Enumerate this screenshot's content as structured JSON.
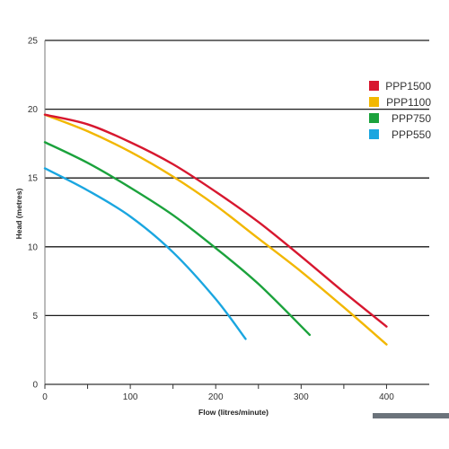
{
  "chart_data": {
    "type": "line",
    "xlabel": "Flow (litres/minute)",
    "ylabel": "Head (metres)",
    "xlim": [
      0,
      450
    ],
    "ylim": [
      0,
      25
    ],
    "x_ticks": [
      0,
      100,
      200,
      300,
      400
    ],
    "x_minor_ticks": [
      50,
      150,
      250,
      350
    ],
    "y_ticks": [
      0,
      5,
      10,
      15,
      20,
      25
    ],
    "grid": "horizontal",
    "legend_position": "top-right",
    "series": [
      {
        "name": "PPP1500",
        "color": "#d7172f",
        "x": [
          0,
          50,
          100,
          150,
          200,
          250,
          300,
          350,
          400
        ],
        "y": [
          19.6,
          18.9,
          17.6,
          16.0,
          14.0,
          11.8,
          9.3,
          6.7,
          4.2
        ]
      },
      {
        "name": "PPP1100",
        "color": "#f2b700",
        "x": [
          0,
          50,
          100,
          150,
          200,
          250,
          300,
          350,
          400
        ],
        "y": [
          19.6,
          18.4,
          16.9,
          15.1,
          13.0,
          10.6,
          8.2,
          5.6,
          2.9
        ]
      },
      {
        "name": "PPP750",
        "color": "#1ba23c",
        "x": [
          0,
          50,
          100,
          150,
          200,
          250,
          310
        ],
        "y": [
          17.6,
          16.1,
          14.3,
          12.3,
          9.9,
          7.3,
          3.6
        ]
      },
      {
        "name": "PPP550",
        "color": "#1aa6e0",
        "x": [
          0,
          50,
          100,
          150,
          200,
          235
        ],
        "y": [
          15.7,
          14.1,
          12.2,
          9.6,
          6.2,
          3.3
        ]
      }
    ]
  }
}
